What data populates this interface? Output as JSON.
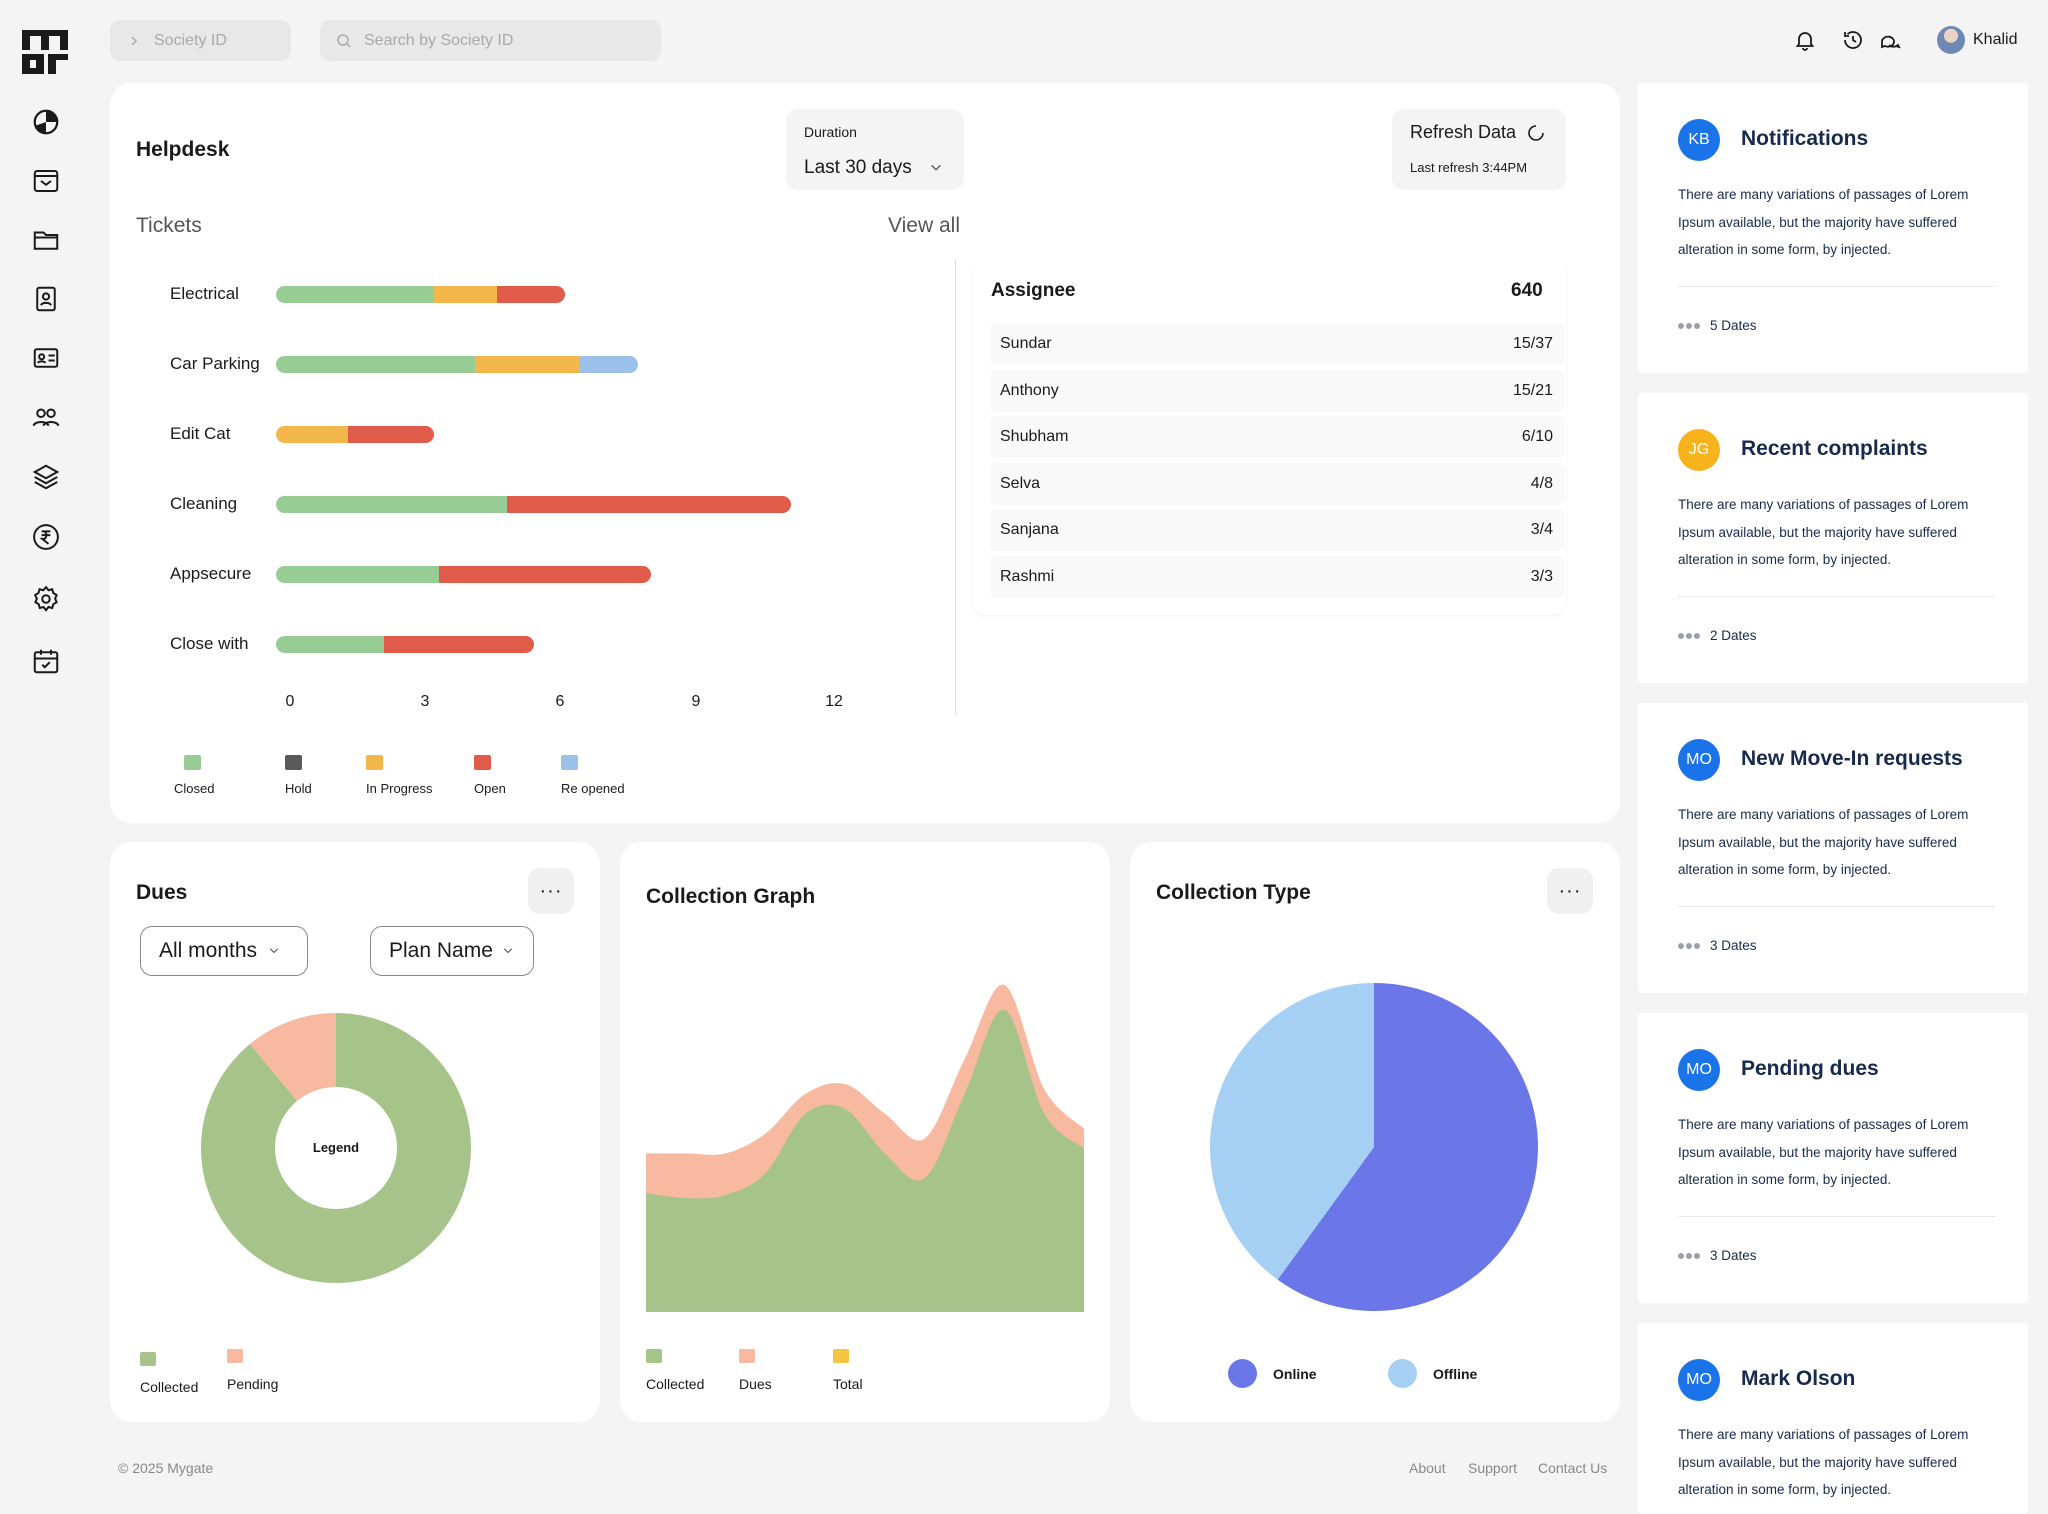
{
  "topbar": {
    "society_id_placeholder": "Society ID",
    "search_placeholder": "Search by Society ID",
    "user_name": "Khalid"
  },
  "helpdesk": {
    "title": "Helpdesk",
    "duration_label": "Duration",
    "duration_value": "Last 30 days",
    "refresh_label": "Refresh Data",
    "last_refresh": "Last refresh 3:44PM",
    "tickets_label": "Tickets",
    "view_all": "View all"
  },
  "chart_data": [
    {
      "type": "bar",
      "orientation": "horizontal",
      "stacked": true,
      "categories": [
        "Electrical",
        "Car Parking",
        "Edit Cat",
        "Cleaning",
        "Appsecure",
        "Close with"
      ],
      "series": [
        {
          "name": "Closed",
          "color": "#97cc94",
          "values": [
            3.5,
            4.4,
            0,
            5.1,
            3.6,
            2.4
          ]
        },
        {
          "name": "Hold",
          "color": "#5a5a5a",
          "values": [
            0,
            0,
            0,
            0,
            0,
            0
          ]
        },
        {
          "name": "In Progress",
          "color": "#f2b64a",
          "values": [
            1.4,
            2.3,
            1.6,
            0,
            0,
            0
          ]
        },
        {
          "name": "Open",
          "color": "#e15b4a",
          "values": [
            1.5,
            0,
            1.9,
            6.3,
            4.7,
            3.3
          ]
        },
        {
          "name": "Re opened",
          "color": "#9bc0ea",
          "values": [
            0,
            1.3,
            0,
            0,
            0,
            0
          ]
        }
      ],
      "xticks": [
        "0",
        "3",
        "6",
        "9",
        "12"
      ],
      "xlim": [
        0,
        12
      ],
      "legend_position": "bottom"
    },
    {
      "type": "pie",
      "donut": true,
      "center_label": "Legend",
      "slices": [
        {
          "name": "Collected",
          "value": 89,
          "color": "#a6c48a"
        },
        {
          "name": "Pending",
          "value": 11,
          "color": "#f7b9a0"
        }
      ]
    },
    {
      "type": "area",
      "stacked": true,
      "series": [
        {
          "name": "Collected",
          "color": "#a6c48a",
          "values": [
            120,
            115,
            118,
            140,
            200,
            205,
            160,
            135,
            220,
            305,
            200,
            165
          ]
        },
        {
          "name": "Dues",
          "color": "#f7b9a0",
          "values": [
            40,
            45,
            42,
            40,
            20,
            25,
            40,
            40,
            35,
            25,
            25,
            20
          ]
        },
        {
          "name": "Total",
          "color": "#f5c541",
          "values": []
        }
      ]
    },
    {
      "type": "pie",
      "slices": [
        {
          "name": "Online",
          "value": 60,
          "color": "#6b76e8"
        },
        {
          "name": "Offline",
          "value": 40,
          "color": "#a6cff4"
        }
      ]
    }
  ],
  "assignee": {
    "title": "Assignee",
    "total": "640",
    "rows": [
      {
        "name": "Sundar",
        "value": "15/37"
      },
      {
        "name": "Anthony",
        "value": "15/21"
      },
      {
        "name": "Shubham",
        "value": "6/10"
      },
      {
        "name": "Selva",
        "value": "4/8"
      },
      {
        "name": "Sanjana",
        "value": "3/4"
      },
      {
        "name": "Rashmi",
        "value": "3/3"
      }
    ]
  },
  "dues": {
    "title": "Dues",
    "months_dropdown": "All months",
    "plan_dropdown": "Plan Name",
    "more_label": "···"
  },
  "collection_graph": {
    "title": "Collection Graph"
  },
  "collection_type": {
    "title": "Collection Type",
    "more_label": "···"
  },
  "notes": [
    {
      "initials": "KB",
      "avatar_color": "#1a73e8",
      "title": "Notifications",
      "body": "There are many variations of passages of Lorem Ipsum available, but the majority have suffered alteration in some form, by injected.",
      "dates": "5 Dates"
    },
    {
      "initials": "JG",
      "avatar_color": "#f6b31b",
      "title": "Recent complaints",
      "body": "There are many variations of passages of Lorem Ipsum available, but the majority have suffered alteration in some form, by injected.",
      "dates": "2 Dates"
    },
    {
      "initials": "MO",
      "avatar_color": "#1a73e8",
      "title": "New Move-In requests",
      "body": "There are many variations of passages of Lorem Ipsum available, but the majority have suffered alteration in some form, by injected.",
      "dates": "3 Dates"
    },
    {
      "initials": "MO",
      "avatar_color": "#1a73e8",
      "title": "Pending dues",
      "body": "There are many variations of passages of Lorem Ipsum available, but the majority have suffered alteration in some form, by injected.",
      "dates": "3 Dates"
    },
    {
      "initials": "MO",
      "avatar_color": "#1a73e8",
      "title": "Mark Olson",
      "body": "There are many variations of passages of Lorem Ipsum available, but the majority have suffered alteration in some form, by injected.",
      "dates": ""
    }
  ],
  "footer": {
    "copyright": "© 2025 Mygate",
    "about": "About",
    "support": "Support",
    "contact": "Contact Us"
  }
}
